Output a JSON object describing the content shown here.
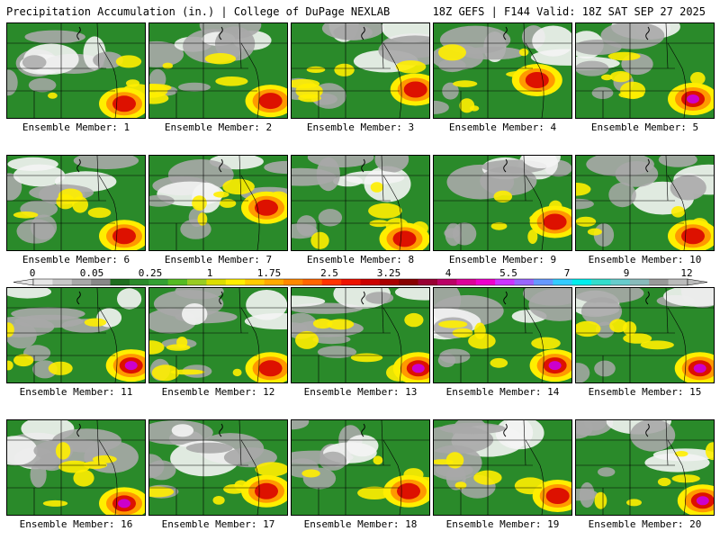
{
  "header": {
    "title_left": "Precipitation Accumulation (in.) | College of DuPage NEXLAB",
    "title_right": "18Z GEFS | F144 Valid: 18Z SAT SEP 27 2025"
  },
  "panels": [
    {
      "label": "Ensemble Member: 1",
      "hot": [
        0.85,
        0.85
      ],
      "intensity": 2
    },
    {
      "label": "Ensemble Member: 2",
      "hot": [
        0.88,
        0.82
      ],
      "intensity": 2
    },
    {
      "label": "Ensemble Member: 3",
      "hot": [
        0.9,
        0.7
      ],
      "intensity": 2
    },
    {
      "label": "Ensemble Member: 4",
      "hot": [
        0.75,
        0.6
      ],
      "intensity": 1
    },
    {
      "label": "Ensemble Member: 5",
      "hot": [
        0.85,
        0.8
      ],
      "intensity": 3
    },
    {
      "label": "Ensemble Member: 6",
      "hot": [
        0.85,
        0.85
      ],
      "intensity": 2
    },
    {
      "label": "Ensemble Member: 7",
      "hot": [
        0.85,
        0.55
      ],
      "intensity": 2
    },
    {
      "label": "Ensemble Member: 8",
      "hot": [
        0.82,
        0.88
      ],
      "intensity": 2
    },
    {
      "label": "Ensemble Member: 9",
      "hot": [
        0.88,
        0.7
      ],
      "intensity": 2
    },
    {
      "label": "Ensemble Member: 10",
      "hot": [
        0.85,
        0.85
      ],
      "intensity": 2
    },
    {
      "label": "Ensemble Member: 11",
      "hot": [
        0.9,
        0.82
      ],
      "intensity": 3
    },
    {
      "label": "Ensemble Member: 12",
      "hot": [
        0.88,
        0.85
      ],
      "intensity": 2
    },
    {
      "label": "Ensemble Member: 13",
      "hot": [
        0.92,
        0.85
      ],
      "intensity": 3
    },
    {
      "label": "Ensemble Member: 14",
      "hot": [
        0.88,
        0.82
      ],
      "intensity": 3
    },
    {
      "label": "Ensemble Member: 15",
      "hot": [
        0.9,
        0.85
      ],
      "intensity": 3
    },
    {
      "label": "Ensemble Member: 16",
      "hot": [
        0.85,
        0.88
      ],
      "intensity": 3
    },
    {
      "label": "Ensemble Member: 17",
      "hot": [
        0.85,
        0.75
      ],
      "intensity": 2
    },
    {
      "label": "Ensemble Member: 18",
      "hot": [
        0.85,
        0.75
      ],
      "intensity": 2
    },
    {
      "label": "Ensemble Member: 19",
      "hot": [
        0.9,
        0.8
      ],
      "intensity": 2
    },
    {
      "label": "Ensemble Member: 20",
      "hot": [
        0.92,
        0.85
      ],
      "intensity": 3
    }
  ],
  "colorbar": {
    "tick_labels": [
      "0",
      "0.05",
      "0.25",
      "1",
      "1.75",
      "2.5",
      "3.25",
      "4",
      "5.5",
      "7",
      "9",
      "12"
    ],
    "colors": [
      "#e6e6e6",
      "#c8c8c8",
      "#a8a8a8",
      "#888888",
      "#1e6e1e",
      "#2a8a2a",
      "#33a033",
      "#55bb22",
      "#99cc22",
      "#dddd00",
      "#ffee00",
      "#ffcc00",
      "#ffaa00",
      "#ff8800",
      "#ff6600",
      "#ff3300",
      "#ee1100",
      "#cc0000",
      "#aa0000",
      "#880000",
      "#990033",
      "#bb0066",
      "#dd0099",
      "#ee00cc",
      "#cc33ff",
      "#9966ff",
      "#6699ff",
      "#33ccff",
      "#00eeee",
      "#33ddcc",
      "#66cccc",
      "#88bbbb",
      "#999999",
      "#bbbbbb"
    ]
  },
  "colors": {
    "background": "#ffffff",
    "green": "#2a8a2a",
    "gray": "#a8a8a8",
    "white": "#f4f4f4",
    "yellow": "#ffee00",
    "orange": "#ff9900",
    "red": "#dd1100",
    "magenta": "#cc00cc"
  }
}
